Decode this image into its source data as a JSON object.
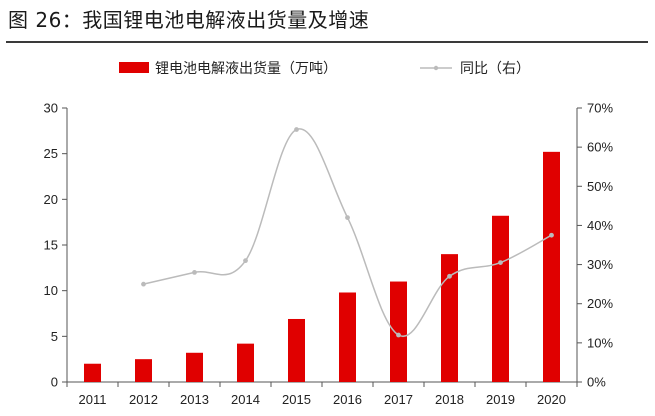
{
  "figure_title": "图 26：我国锂电池电解液出货量及增速",
  "chart_data": {
    "type": "bar",
    "categories": [
      "2011",
      "2012",
      "2013",
      "2014",
      "2015",
      "2016",
      "2017",
      "2018",
      "2019",
      "2020"
    ],
    "series": [
      {
        "name": "锂电池电解液出货量（万吨）",
        "type": "bar",
        "axis": "left",
        "color": "#e00000",
        "values": [
          2.0,
          2.5,
          3.2,
          4.2,
          6.9,
          9.8,
          11.0,
          14.0,
          18.2,
          25.2
        ]
      },
      {
        "name": "同比（右）",
        "type": "line",
        "axis": "right",
        "color": "#bbbbbb",
        "values": [
          null,
          0.25,
          0.28,
          0.31,
          0.645,
          0.42,
          0.12,
          0.27,
          0.305,
          0.375
        ]
      }
    ],
    "ylim_left": [
      0,
      30
    ],
    "yticks_left": [
      "0",
      "5",
      "10",
      "15",
      "20",
      "25",
      "30"
    ],
    "ylim_right": [
      0,
      0.7
    ],
    "yticks_right": [
      "0%",
      "10%",
      "20%",
      "30%",
      "40%",
      "50%",
      "60%",
      "70%"
    ],
    "legend_position": "top-center",
    "grid": false
  }
}
